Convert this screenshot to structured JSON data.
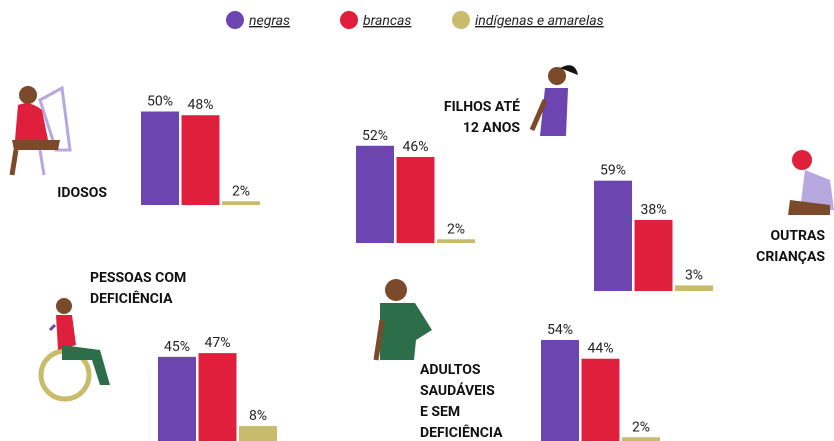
{
  "legend": {
    "series": [
      {
        "name": "negras",
        "color": "#6c45b0"
      },
      {
        "name": "brancas",
        "color": "#e01f3d"
      },
      {
        "name": "indígenas e amarelas",
        "color": "#c9bb6c"
      }
    ]
  },
  "chart_data": [
    {
      "type": "bar",
      "title": [
        "IDOSOS"
      ],
      "values": [
        50,
        48,
        2
      ],
      "value_labels": [
        "50%",
        "48%",
        "2%"
      ]
    },
    {
      "type": "bar",
      "title": [
        "FILHOS ATÉ",
        "12 ANOS"
      ],
      "values": [
        52,
        46,
        2
      ],
      "value_labels": [
        "52%",
        "46%",
        "2%"
      ]
    },
    {
      "type": "bar",
      "title": [
        "OUTRAS",
        "CRIANÇAS"
      ],
      "values": [
        59,
        38,
        3
      ],
      "value_labels": [
        "59%",
        "38%",
        "3%"
      ]
    },
    {
      "type": "bar",
      "title": [
        "PESSOAS COM",
        "DEFICIÊNCIA"
      ],
      "values": [
        45,
        47,
        8
      ],
      "value_labels": [
        "45%",
        "47%",
        "8%"
      ]
    },
    {
      "type": "bar",
      "title": [
        "ADULTOS",
        "SAUDÁVEIS",
        "E SEM",
        "DEFICIÊNCIA"
      ],
      "values": [
        54,
        44,
        2
      ],
      "value_labels": [
        "54%",
        "44%",
        "2%"
      ]
    }
  ]
}
